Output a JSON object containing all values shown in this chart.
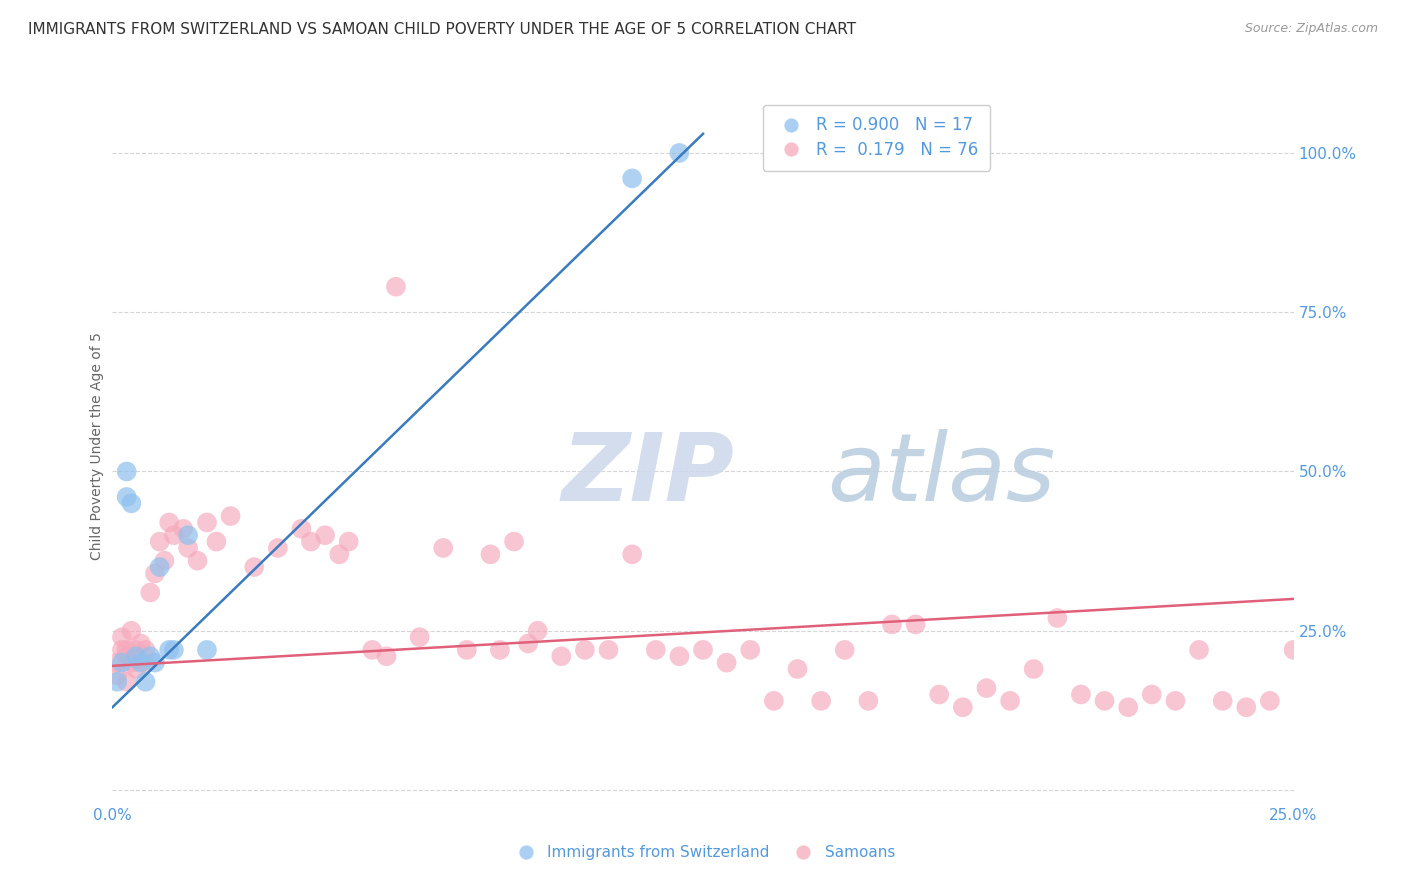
{
  "title": "IMMIGRANTS FROM SWITZERLAND VS SAMOAN CHILD POVERTY UNDER THE AGE OF 5 CORRELATION CHART",
  "source": "Source: ZipAtlas.com",
  "ylabel": "Child Poverty Under the Age of 5",
  "title_fontsize": 11,
  "source_fontsize": 9,
  "ylabel_fontsize": 10,
  "swiss_R": 0.9,
  "swiss_N": 17,
  "samoan_R": 0.179,
  "samoan_N": 76,
  "xlim": [
    0.0,
    0.25
  ],
  "ylim": [
    -0.02,
    1.1
  ],
  "ytick_positions": [
    0.0,
    0.25,
    0.5,
    0.75,
    1.0
  ],
  "yticklabels_right": [
    "",
    "25.0%",
    "50.0%",
    "75.0%",
    "100.0%"
  ],
  "background_color": "#ffffff",
  "grid_color": "#cccccc",
  "blue_color": "#8ec0ee",
  "pink_color": "#f5a8ba",
  "blue_line_color": "#3a7abf",
  "pink_line_color": "#e0607a",
  "axis_label_color": "#5599dd",
  "watermark_color_zip": "#d0dff0",
  "watermark_color_atlas": "#c8d8e8",
  "swiss_x": [
    0.001,
    0.002,
    0.003,
    0.003,
    0.004,
    0.005,
    0.006,
    0.007,
    0.008,
    0.009,
    0.01,
    0.012,
    0.013,
    0.016,
    0.02,
    0.11,
    0.12
  ],
  "swiss_y": [
    0.17,
    0.2,
    0.46,
    0.5,
    0.45,
    0.21,
    0.2,
    0.17,
    0.21,
    0.2,
    0.35,
    0.22,
    0.22,
    0.4,
    0.22,
    0.96,
    1.0
  ],
  "samoan_x": [
    0.001,
    0.001,
    0.002,
    0.002,
    0.003,
    0.003,
    0.003,
    0.004,
    0.004,
    0.005,
    0.005,
    0.006,
    0.007,
    0.007,
    0.008,
    0.009,
    0.01,
    0.011,
    0.012,
    0.013,
    0.015,
    0.016,
    0.018,
    0.02,
    0.022,
    0.025,
    0.03,
    0.035,
    0.04,
    0.042,
    0.045,
    0.048,
    0.05,
    0.055,
    0.058,
    0.06,
    0.065,
    0.07,
    0.075,
    0.08,
    0.082,
    0.085,
    0.088,
    0.09,
    0.095,
    0.1,
    0.105,
    0.11,
    0.115,
    0.12,
    0.125,
    0.13,
    0.135,
    0.14,
    0.145,
    0.15,
    0.155,
    0.16,
    0.165,
    0.17,
    0.175,
    0.18,
    0.185,
    0.19,
    0.195,
    0.2,
    0.205,
    0.21,
    0.215,
    0.22,
    0.225,
    0.23,
    0.235,
    0.24,
    0.245,
    0.25
  ],
  "samoan_y": [
    0.2,
    0.18,
    0.22,
    0.24,
    0.17,
    0.22,
    0.21,
    0.2,
    0.25,
    0.19,
    0.22,
    0.23,
    0.22,
    0.2,
    0.31,
    0.34,
    0.39,
    0.36,
    0.42,
    0.4,
    0.41,
    0.38,
    0.36,
    0.42,
    0.39,
    0.43,
    0.35,
    0.38,
    0.41,
    0.39,
    0.4,
    0.37,
    0.39,
    0.22,
    0.21,
    0.79,
    0.24,
    0.38,
    0.22,
    0.37,
    0.22,
    0.39,
    0.23,
    0.25,
    0.21,
    0.22,
    0.22,
    0.37,
    0.22,
    0.21,
    0.22,
    0.2,
    0.22,
    0.14,
    0.19,
    0.14,
    0.22,
    0.14,
    0.26,
    0.26,
    0.15,
    0.13,
    0.16,
    0.14,
    0.19,
    0.27,
    0.15,
    0.14,
    0.13,
    0.15,
    0.14,
    0.22,
    0.14,
    0.13,
    0.14,
    0.22
  ],
  "swiss_line_x0": 0.0,
  "swiss_line_y0": 0.13,
  "swiss_line_x1": 0.125,
  "swiss_line_y1": 1.03,
  "samoan_line_x0": 0.0,
  "samoan_line_y0": 0.195,
  "samoan_line_x1": 0.25,
  "samoan_line_y1": 0.3
}
